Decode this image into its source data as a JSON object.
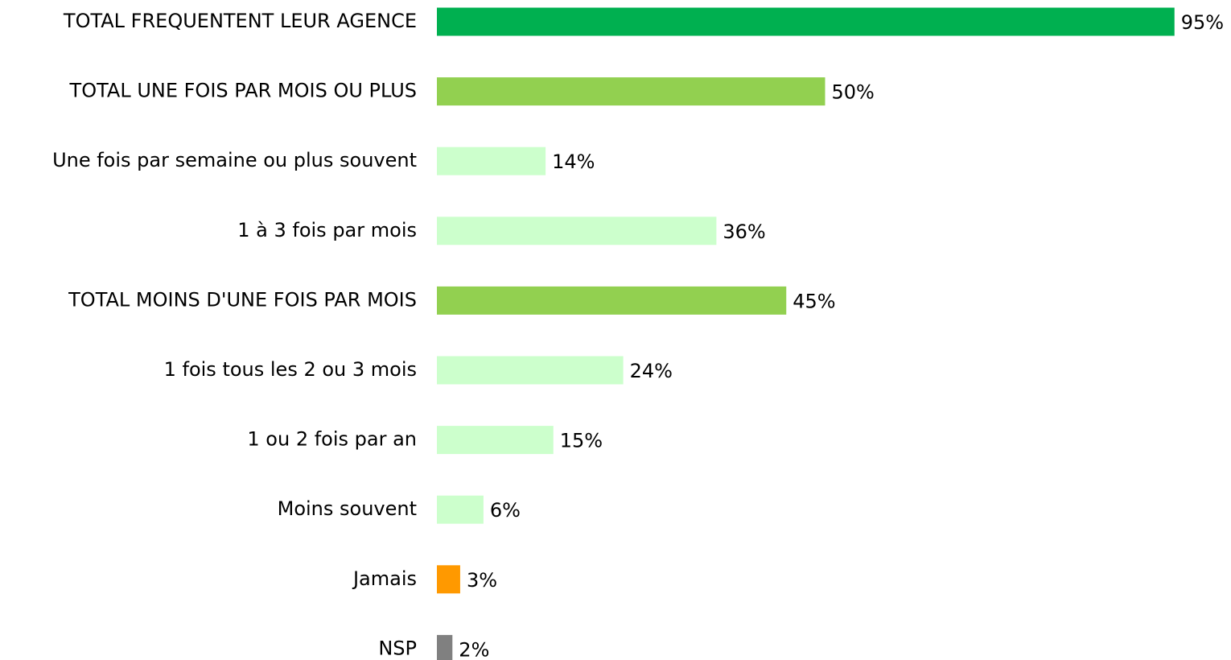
{
  "chart_data": {
    "type": "bar",
    "orientation": "horizontal",
    "categories": [
      "TOTAL FREQUENTENT LEUR AGENCE",
      "TOTAL UNE FOIS PAR MOIS OU PLUS",
      "Une fois par semaine ou plus souvent",
      "1 à 3 fois par mois",
      "TOTAL MOINS D'UNE FOIS PAR MOIS",
      "1 fois tous les 2 ou 3 mois",
      "1 ou 2 fois par an",
      "Moins souvent",
      "Jamais",
      "NSP"
    ],
    "values": [
      95,
      50,
      14,
      36,
      45,
      24,
      15,
      6,
      3,
      2
    ],
    "value_labels": [
      "95%",
      "50%",
      "14%",
      "36%",
      "45%",
      "24%",
      "15%",
      "6%",
      "3%",
      "2%"
    ],
    "colors": [
      "#00b050",
      "#92d050",
      "#ccffcc",
      "#ccffcc",
      "#92d050",
      "#ccffcc",
      "#ccffcc",
      "#ccffcc",
      "#ff9900",
      "#808080"
    ]
  }
}
